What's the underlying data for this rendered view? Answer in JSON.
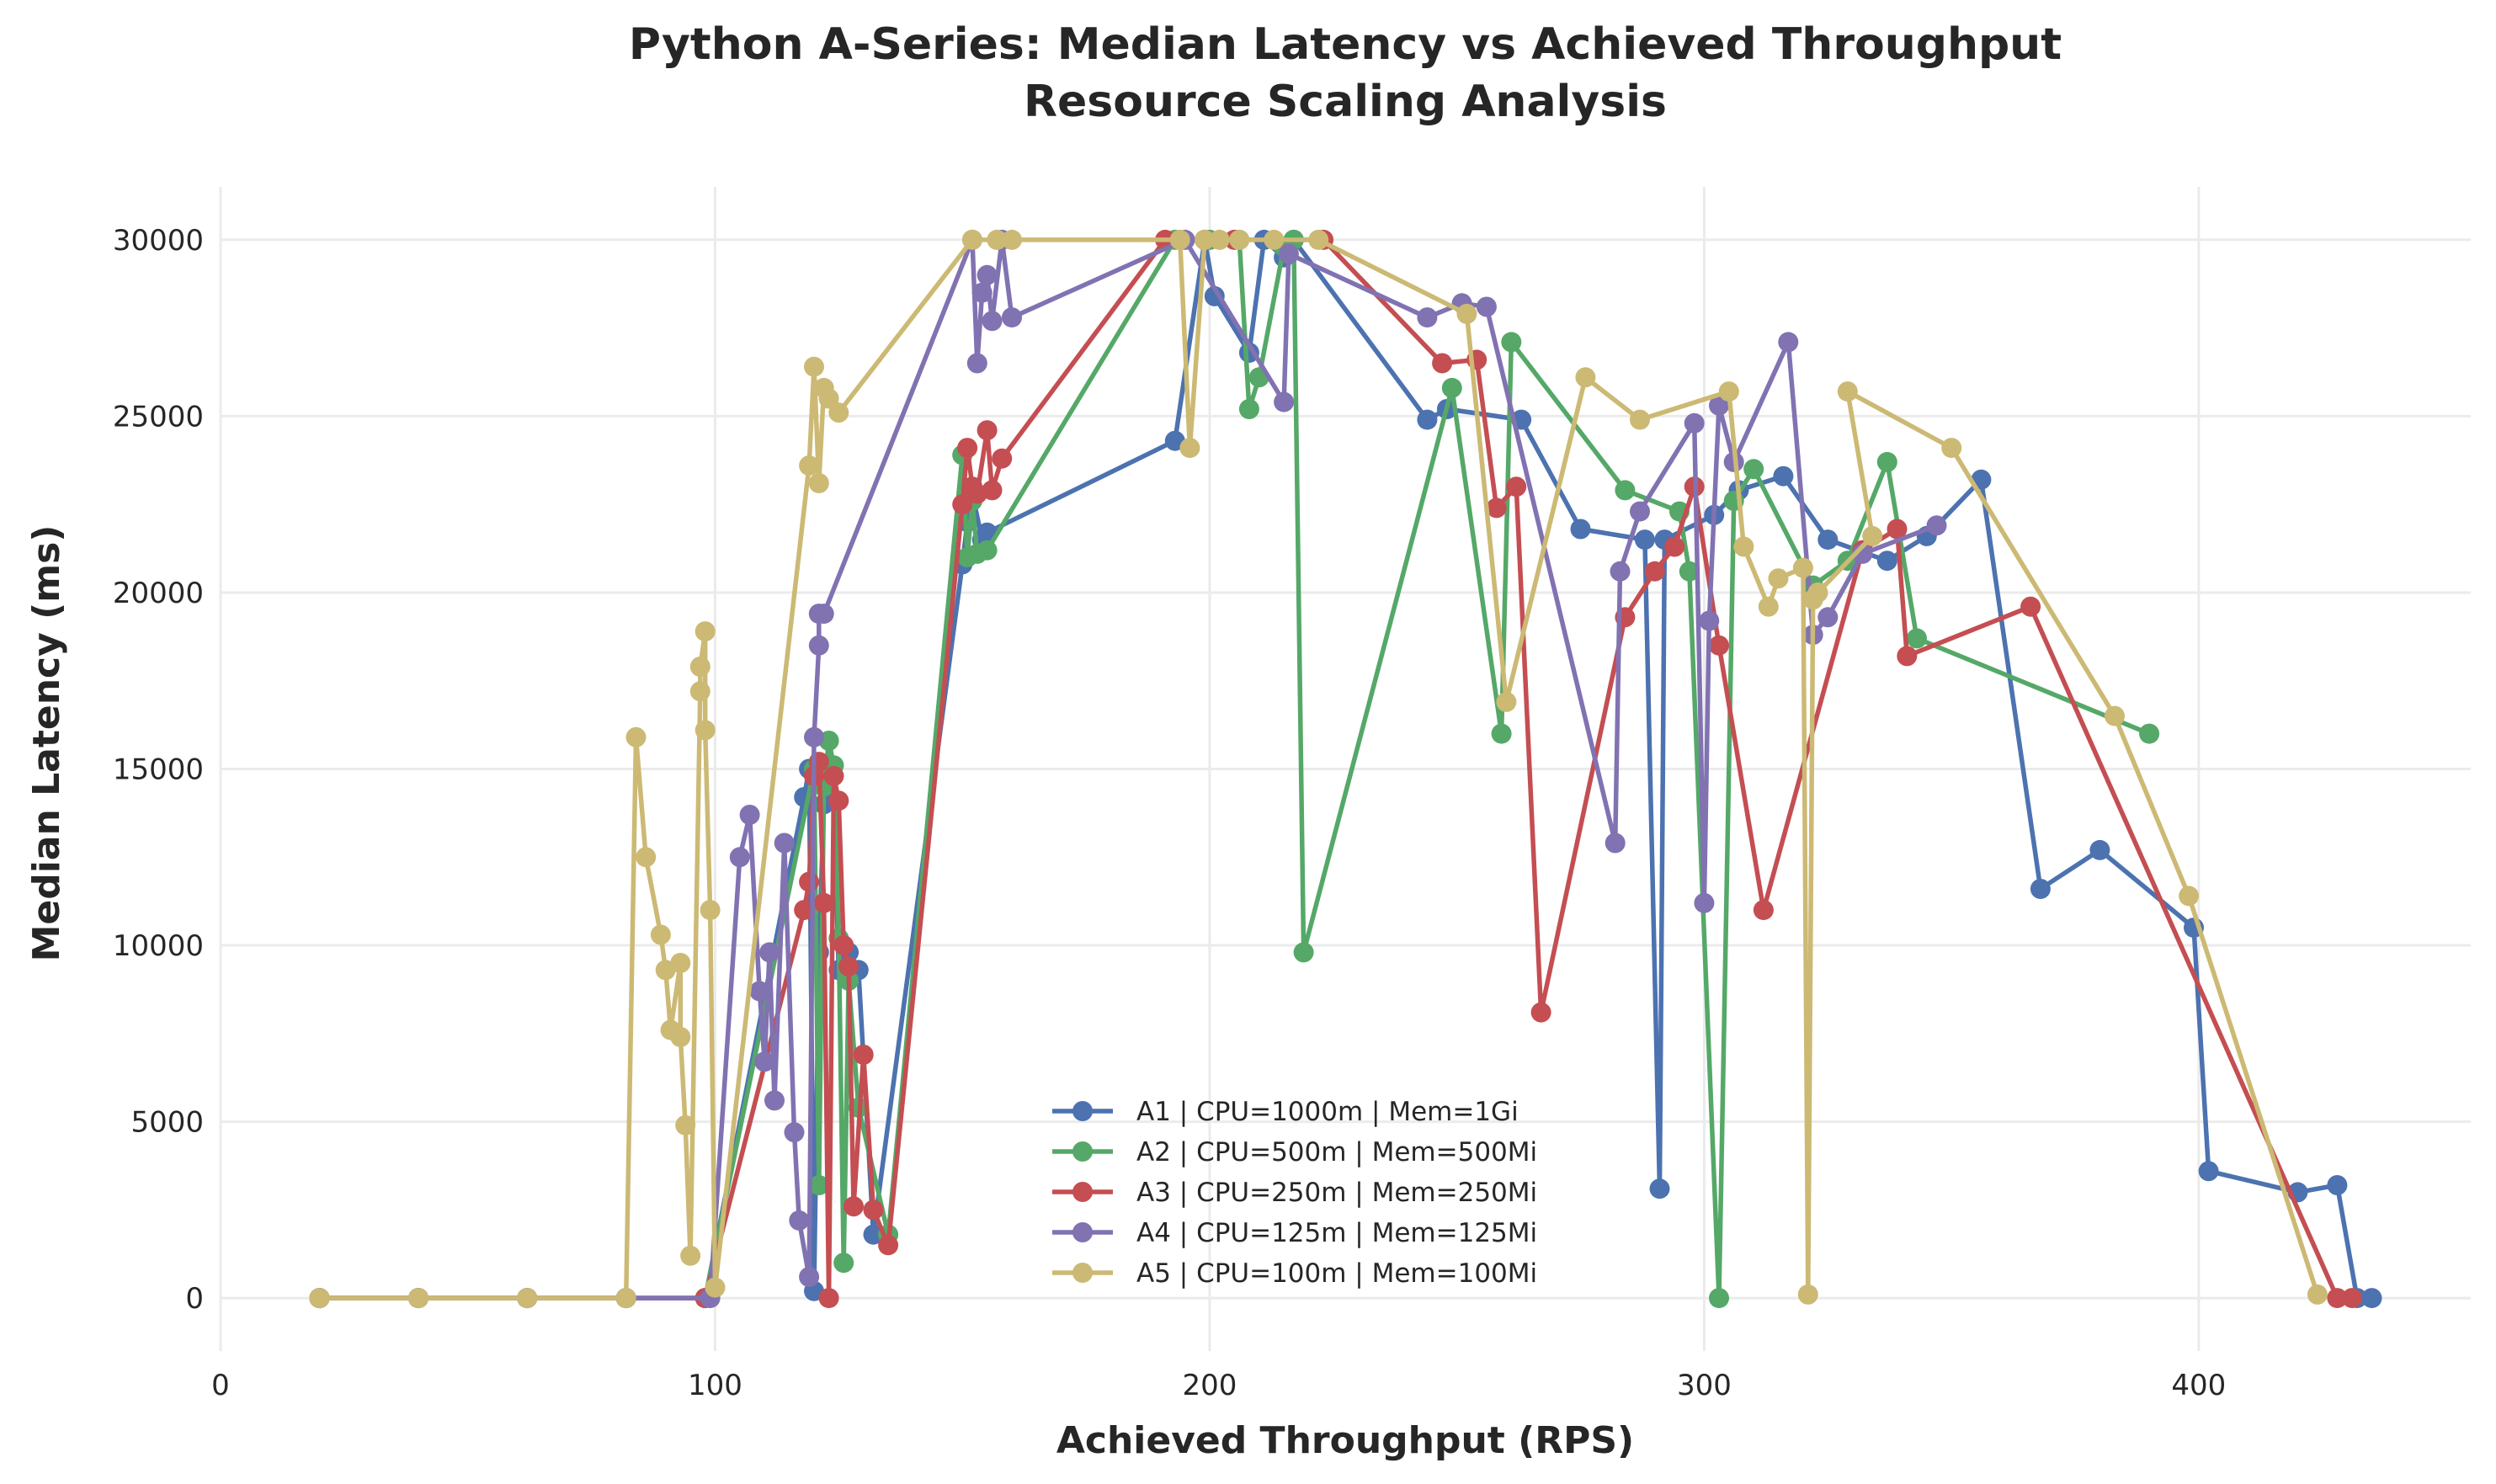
{
  "chart_data": {
    "type": "line",
    "title": "Python A-Series: Median Latency vs Achieved Throughput",
    "subtitle": "Resource Scaling Analysis",
    "xlabel": "Achieved Throughput (RPS)",
    "ylabel": "Median Latency (ms)",
    "xlim": [
      0,
      455
    ],
    "ylim": [
      -1500,
      31500
    ],
    "x_ticks": [
      0,
      100,
      200,
      300,
      400
    ],
    "x_tick_labels": [
      "0",
      "100",
      "200",
      "300",
      "400"
    ],
    "y_ticks": [
      0,
      5000,
      10000,
      15000,
      20000,
      25000,
      30000
    ],
    "y_tick_labels": [
      "0",
      "5000",
      "10000",
      "15000",
      "20000",
      "25000",
      "30000"
    ],
    "grid": true,
    "legend_position": "bottom-center",
    "series": [
      {
        "name": "A1 | CPU=1000m | Mem=1Gi",
        "color": "#4c72b0",
        "points": [
          [
            20,
            0
          ],
          [
            40,
            0
          ],
          [
            62,
            0
          ],
          [
            82,
            0
          ],
          [
            98,
            0
          ],
          [
            118,
            14200
          ],
          [
            119,
            15000
          ],
          [
            120,
            200
          ],
          [
            121,
            9800
          ],
          [
            122,
            14000
          ],
          [
            124,
            14100
          ],
          [
            125,
            9300
          ],
          [
            127,
            9800
          ],
          [
            129,
            9300
          ],
          [
            132,
            1800
          ],
          [
            150,
            20800
          ],
          [
            151,
            22000
          ],
          [
            152,
            22800
          ],
          [
            154,
            21500
          ],
          [
            155,
            21700
          ],
          [
            193,
            24300
          ],
          [
            199,
            30000
          ],
          [
            201,
            28400
          ],
          [
            208,
            26800
          ],
          [
            211,
            30000
          ],
          [
            215,
            29500
          ],
          [
            217,
            30000
          ],
          [
            244,
            24900
          ],
          [
            248,
            25200
          ],
          [
            263,
            24900
          ],
          [
            275,
            21800
          ],
          [
            288,
            21500
          ],
          [
            291,
            3100
          ],
          [
            292,
            21500
          ],
          [
            302,
            22200
          ],
          [
            307,
            22900
          ],
          [
            316,
            23300
          ],
          [
            325,
            21500
          ],
          [
            337,
            20900
          ],
          [
            345,
            21600
          ],
          [
            356,
            23200
          ],
          [
            368,
            11600
          ],
          [
            380,
            12700
          ],
          [
            399,
            10500
          ],
          [
            402,
            3600
          ],
          [
            420,
            3000
          ],
          [
            428,
            3200
          ],
          [
            432,
            0
          ],
          [
            435,
            0
          ]
        ]
      },
      {
        "name": "A2 | CPU=500m | Mem=500Mi",
        "color": "#55a868",
        "points": [
          [
            20,
            0
          ],
          [
            40,
            0
          ],
          [
            62,
            0
          ],
          [
            82,
            0
          ],
          [
            98,
            0
          ],
          [
            120,
            15000
          ],
          [
            121,
            3200
          ],
          [
            122,
            14500
          ],
          [
            123,
            15800
          ],
          [
            124,
            15100
          ],
          [
            125,
            10200
          ],
          [
            126,
            1000
          ],
          [
            127,
            9000
          ],
          [
            129,
            5400
          ],
          [
            135,
            1800
          ],
          [
            150,
            23900
          ],
          [
            151,
            21000
          ],
          [
            152,
            22600
          ],
          [
            153,
            21100
          ],
          [
            155,
            21200
          ],
          [
            193,
            30000
          ],
          [
            200,
            30000
          ],
          [
            206,
            30000
          ],
          [
            208,
            25200
          ],
          [
            210,
            26100
          ],
          [
            215,
            29800
          ],
          [
            217,
            30000
          ],
          [
            219,
            9800
          ],
          [
            249,
            25800
          ],
          [
            259,
            16000
          ],
          [
            261,
            27100
          ],
          [
            284,
            22900
          ],
          [
            295,
            22300
          ],
          [
            297,
            20600
          ],
          [
            303,
            0
          ],
          [
            306,
            22600
          ],
          [
            310,
            23500
          ],
          [
            322,
            20200
          ],
          [
            329,
            20900
          ],
          [
            337,
            23700
          ],
          [
            343,
            18700
          ],
          [
            390,
            16000
          ]
        ]
      },
      {
        "name": "A3 | CPU=250m | Mem=250Mi",
        "color": "#c44e52",
        "points": [
          [
            20,
            0
          ],
          [
            40,
            0
          ],
          [
            62,
            0
          ],
          [
            82,
            0
          ],
          [
            98,
            0
          ],
          [
            118,
            11000
          ],
          [
            119,
            11800
          ],
          [
            120,
            14800
          ],
          [
            121,
            15200
          ],
          [
            122,
            11200
          ],
          [
            123,
            0
          ],
          [
            124,
            14800
          ],
          [
            125,
            14100
          ],
          [
            126,
            10000
          ],
          [
            127,
            9400
          ],
          [
            128,
            2600
          ],
          [
            130,
            6900
          ],
          [
            132,
            2500
          ],
          [
            135,
            1500
          ],
          [
            150,
            22500
          ],
          [
            151,
            24100
          ],
          [
            152,
            23000
          ],
          [
            153,
            22800
          ],
          [
            155,
            24600
          ],
          [
            156,
            22900
          ],
          [
            158,
            23800
          ],
          [
            191,
            30000
          ],
          [
            199,
            30000
          ],
          [
            205,
            30000
          ],
          [
            223,
            30000
          ],
          [
            247,
            26500
          ],
          [
            254,
            26600
          ],
          [
            258,
            22400
          ],
          [
            262,
            23000
          ],
          [
            267,
            8100
          ],
          [
            284,
            19300
          ],
          [
            290,
            20600
          ],
          [
            294,
            21300
          ],
          [
            298,
            23000
          ],
          [
            303,
            18500
          ],
          [
            312,
            11000
          ],
          [
            332,
            21200
          ],
          [
            339,
            21800
          ],
          [
            341,
            18200
          ],
          [
            366,
            19600
          ],
          [
            428,
            0
          ],
          [
            431,
            0
          ]
        ]
      },
      {
        "name": "A4 | CPU=125m | Mem=125Mi",
        "color": "#8172b2",
        "points": [
          [
            20,
            0
          ],
          [
            40,
            0
          ],
          [
            62,
            0
          ],
          [
            82,
            0
          ],
          [
            99,
            0
          ],
          [
            105,
            12500
          ],
          [
            107,
            13700
          ],
          [
            109,
            8700
          ],
          [
            110,
            6700
          ],
          [
            111,
            9800
          ],
          [
            112,
            5600
          ],
          [
            114,
            12900
          ],
          [
            116,
            4700
          ],
          [
            117,
            2200
          ],
          [
            119,
            600
          ],
          [
            120,
            15900
          ],
          [
            121,
            18500
          ],
          [
            121,
            19400
          ],
          [
            122,
            19400
          ],
          [
            152,
            30000
          ],
          [
            153,
            26500
          ],
          [
            154,
            28500
          ],
          [
            155,
            29000
          ],
          [
            156,
            27700
          ],
          [
            158,
            30000
          ],
          [
            160,
            27800
          ],
          [
            195,
            30000
          ],
          [
            215,
            25400
          ],
          [
            216,
            29600
          ],
          [
            244,
            27800
          ],
          [
            251,
            28200
          ],
          [
            256,
            28100
          ],
          [
            282,
            12900
          ],
          [
            283,
            20600
          ],
          [
            287,
            22300
          ],
          [
            298,
            24800
          ],
          [
            300,
            11200
          ],
          [
            301,
            19200
          ],
          [
            303,
            25300
          ],
          [
            306,
            23700
          ],
          [
            317,
            27100
          ],
          [
            322,
            18800
          ],
          [
            325,
            19300
          ],
          [
            332,
            21100
          ],
          [
            347,
            21900
          ]
        ]
      },
      {
        "name": "A5 | CPU=100m | Mem=100Mi",
        "color": "#ccb974",
        "points": [
          [
            20,
            0
          ],
          [
            40,
            0
          ],
          [
            62,
            0
          ],
          [
            82,
            0
          ],
          [
            84,
            15900
          ],
          [
            86,
            12500
          ],
          [
            89,
            10300
          ],
          [
            90,
            9300
          ],
          [
            91,
            7600
          ],
          [
            93,
            9500
          ],
          [
            93,
            7400
          ],
          [
            94,
            4900
          ],
          [
            95,
            1200
          ],
          [
            97,
            17200
          ],
          [
            97,
            17900
          ],
          [
            98,
            18900
          ],
          [
            98,
            16100
          ],
          [
            99,
            11000
          ],
          [
            100,
            300
          ],
          [
            119,
            23600
          ],
          [
            120,
            26400
          ],
          [
            121,
            23100
          ],
          [
            122,
            25800
          ],
          [
            123,
            25500
          ],
          [
            125,
            25100
          ],
          [
            152,
            30000
          ],
          [
            157,
            30000
          ],
          [
            160,
            30000
          ],
          [
            194,
            30000
          ],
          [
            196,
            24100
          ],
          [
            199,
            30000
          ],
          [
            202,
            30000
          ],
          [
            206,
            30000
          ],
          [
            213,
            30000
          ],
          [
            222,
            30000
          ],
          [
            252,
            27900
          ],
          [
            260,
            16900
          ],
          [
            276,
            26100
          ],
          [
            287,
            24900
          ],
          [
            305,
            25700
          ],
          [
            308,
            21300
          ],
          [
            313,
            19600
          ],
          [
            315,
            20400
          ],
          [
            320,
            20700
          ],
          [
            321,
            100
          ],
          [
            322,
            19800
          ],
          [
            323,
            20000
          ],
          [
            334,
            21600
          ],
          [
            329,
            25700
          ],
          [
            350,
            24100
          ],
          [
            383,
            16500
          ],
          [
            398,
            11400
          ],
          [
            424,
            100
          ]
        ]
      }
    ]
  }
}
